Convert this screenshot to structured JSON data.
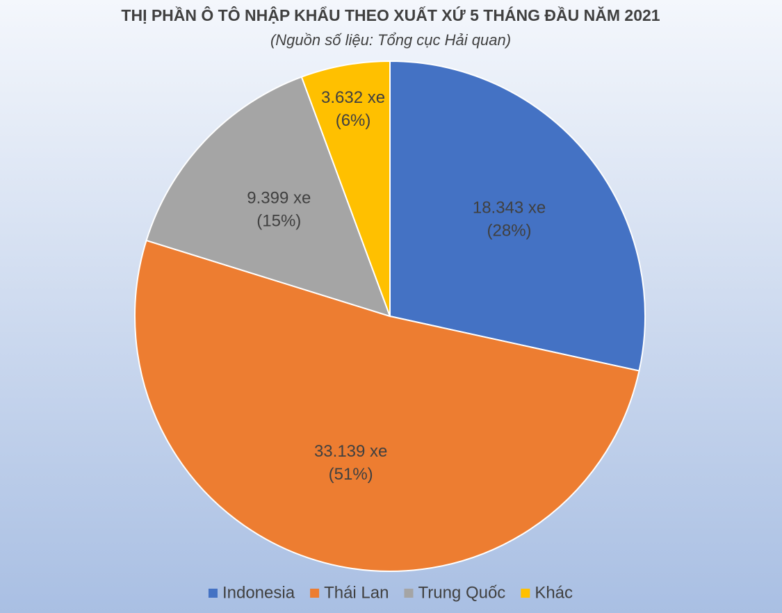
{
  "chart_data": {
    "type": "pie",
    "title": "THỊ PHẦN Ô TÔ NHẬP KHẨU THEO XUẤT XỨ 5 THÁNG ĐẦU NĂM 2021",
    "subtitle": "(Nguồn số liệu: Tổng cục Hải quan)",
    "categories": [
      "Indonesia",
      "Thái Lan",
      "Trung Quốc",
      "Khác"
    ],
    "values": [
      18343,
      33139,
      9399,
      3632
    ],
    "value_labels": [
      "18.343 xe",
      "33.139 xe",
      "9.399 xe",
      "3.632 xe"
    ],
    "percents": [
      28,
      51,
      15,
      6
    ],
    "percent_labels": [
      "(28%)",
      "(51%)",
      "(15%)",
      "(6%)"
    ],
    "colors": [
      "#4472c4",
      "#ed7d31",
      "#a5a5a5",
      "#ffc000"
    ],
    "legend": "bottom"
  }
}
